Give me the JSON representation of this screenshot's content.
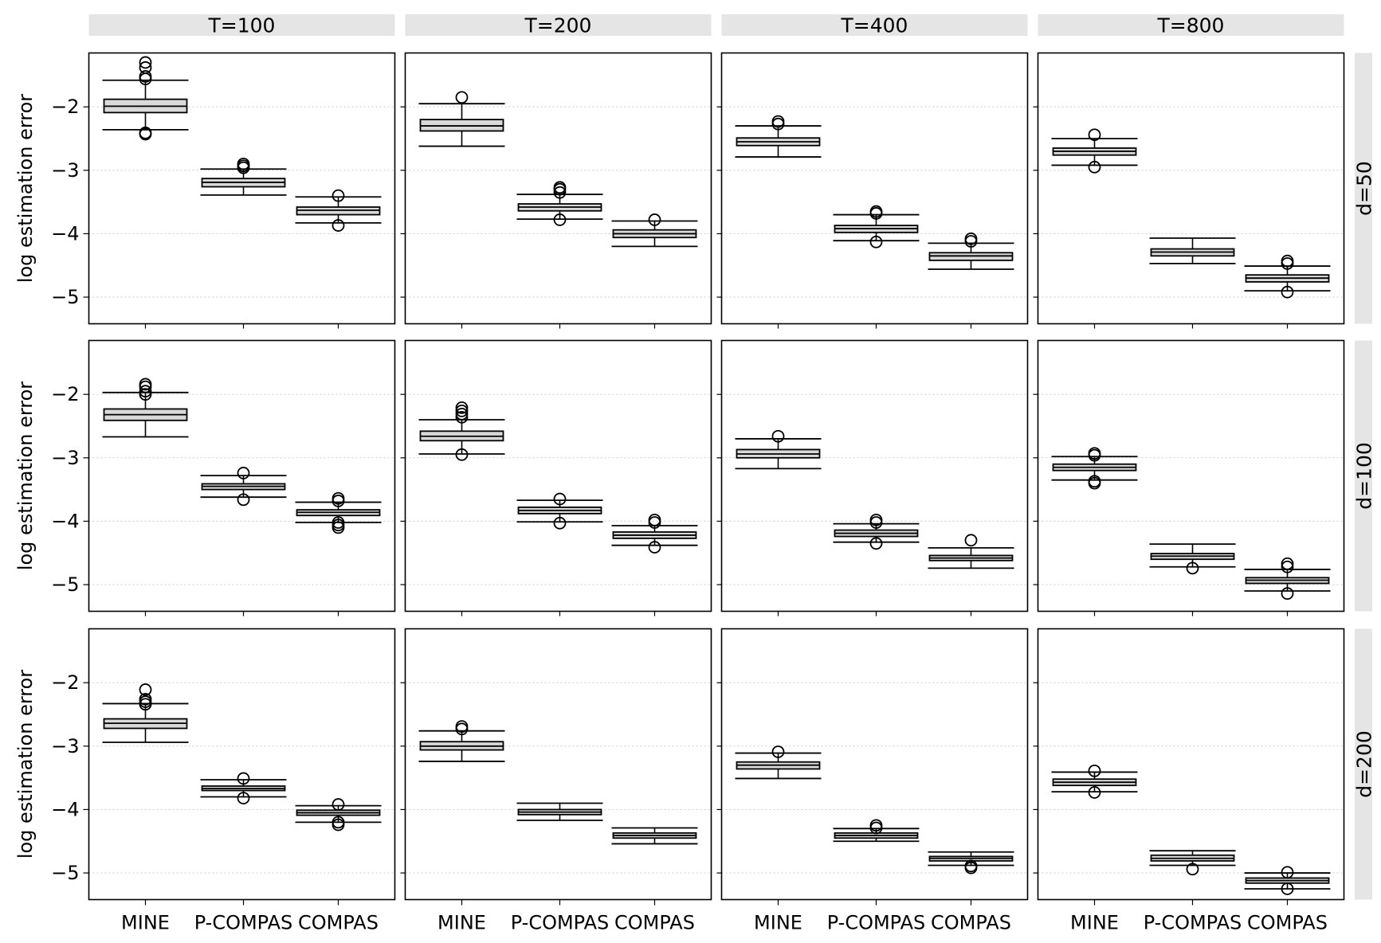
{
  "chart_data": {
    "type": "box",
    "facet_columns": [
      "T=100",
      "T=200",
      "T=400",
      "T=800"
    ],
    "facet_rows": [
      "d=50",
      "d=100",
      "d=200"
    ],
    "categories": [
      "MINE",
      "P-COMPAS",
      "COMPAS"
    ],
    "ylabel": "log  estimation error",
    "xlabel": "",
    "ylim": [
      -5.42,
      -1.15
    ],
    "yticks": [
      -2,
      -3,
      -4,
      -5
    ],
    "ytick_labels": [
      "−2",
      "−3",
      "−4",
      "−5"
    ],
    "grid": "horizontal dotted",
    "colors": {
      "box_fill": "#d9d9d9",
      "strip": "#e5e5e5",
      "grid": "#cccccc"
    },
    "panels": [
      {
        "row": "d=50",
        "col": "T=100",
        "boxes": [
          {
            "category": "MINE",
            "whislo": -2.36,
            "q1": -2.09,
            "median": -1.99,
            "q3": -1.88,
            "whishi": -1.58,
            "fliers": [
              -1.3,
              -1.38,
              -1.52,
              -1.56,
              -2.41,
              -2.43
            ]
          },
          {
            "category": "P-COMPAS",
            "whislo": -3.39,
            "q1": -3.26,
            "median": -3.19,
            "q3": -3.13,
            "whishi": -2.98,
            "fliers": [
              -2.9,
              -2.93,
              -2.96
            ]
          },
          {
            "category": "COMPAS",
            "whislo": -3.83,
            "q1": -3.7,
            "median": -3.63,
            "q3": -3.58,
            "whishi": -3.42,
            "fliers": [
              -3.4,
              -3.87
            ]
          }
        ]
      },
      {
        "row": "d=50",
        "col": "T=200",
        "boxes": [
          {
            "category": "MINE",
            "whislo": -2.62,
            "q1": -2.38,
            "median": -2.3,
            "q3": -2.2,
            "whishi": -1.95,
            "fliers": [
              -1.85
            ]
          },
          {
            "category": "P-COMPAS",
            "whislo": -3.77,
            "q1": -3.64,
            "median": -3.58,
            "q3": -3.53,
            "whishi": -3.38,
            "fliers": [
              -3.27,
              -3.3,
              -3.35,
              -3.78
            ]
          },
          {
            "category": "COMPAS",
            "whislo": -4.2,
            "q1": -4.06,
            "median": -4.0,
            "q3": -3.94,
            "whishi": -3.8,
            "fliers": [
              -3.78
            ]
          }
        ]
      },
      {
        "row": "d=50",
        "col": "T=400",
        "boxes": [
          {
            "category": "MINE",
            "whislo": -2.79,
            "q1": -2.61,
            "median": -2.55,
            "q3": -2.49,
            "whishi": -2.3,
            "fliers": [
              -2.23,
              -2.27
            ]
          },
          {
            "category": "P-COMPAS",
            "whislo": -4.11,
            "q1": -3.98,
            "median": -3.92,
            "q3": -3.87,
            "whishi": -3.7,
            "fliers": [
              -3.65,
              -3.68,
              -4.13
            ]
          },
          {
            "category": "COMPAS",
            "whislo": -4.56,
            "q1": -4.42,
            "median": -4.35,
            "q3": -4.3,
            "whishi": -4.15,
            "fliers": [
              -4.08,
              -4.12
            ]
          }
        ]
      },
      {
        "row": "d=50",
        "col": "T=800",
        "boxes": [
          {
            "category": "MINE",
            "whislo": -2.92,
            "q1": -2.76,
            "median": -2.7,
            "q3": -2.65,
            "whishi": -2.5,
            "fliers": [
              -2.44,
              -2.95
            ]
          },
          {
            "category": "P-COMPAS",
            "whislo": -4.47,
            "q1": -4.35,
            "median": -4.29,
            "q3": -4.24,
            "whishi": -4.07,
            "fliers": []
          },
          {
            "category": "COMPAS",
            "whislo": -4.9,
            "q1": -4.76,
            "median": -4.7,
            "q3": -4.65,
            "whishi": -4.51,
            "fliers": [
              -4.43,
              -4.47,
              -4.92
            ]
          }
        ]
      },
      {
        "row": "d=100",
        "col": "T=100",
        "boxes": [
          {
            "category": "MINE",
            "whislo": -2.67,
            "q1": -2.41,
            "median": -2.32,
            "q3": -2.23,
            "whishi": -1.97,
            "fliers": [
              -1.84,
              -1.88,
              -1.95,
              -2.0
            ]
          },
          {
            "category": "P-COMPAS",
            "whislo": -3.62,
            "q1": -3.5,
            "median": -3.45,
            "q3": -3.41,
            "whishi": -3.28,
            "fliers": [
              -3.24,
              -3.66
            ]
          },
          {
            "category": "COMPAS",
            "whislo": -4.02,
            "q1": -3.91,
            "median": -3.86,
            "q3": -3.82,
            "whishi": -3.7,
            "fliers": [
              -3.64,
              -3.68,
              -4.02,
              -4.06,
              -4.1
            ]
          }
        ]
      },
      {
        "row": "d=100",
        "col": "T=200",
        "boxes": [
          {
            "category": "MINE",
            "whislo": -2.94,
            "q1": -2.73,
            "median": -2.66,
            "q3": -2.58,
            "whishi": -2.4,
            "fliers": [
              -2.21,
              -2.26,
              -2.31,
              -2.36,
              -2.95
            ]
          },
          {
            "category": "P-COMPAS",
            "whislo": -4.01,
            "q1": -3.88,
            "median": -3.83,
            "q3": -3.78,
            "whishi": -3.67,
            "fliers": [
              -3.65,
              -4.03
            ]
          },
          {
            "category": "COMPAS",
            "whislo": -4.38,
            "q1": -4.27,
            "median": -4.22,
            "q3": -4.17,
            "whishi": -4.07,
            "fliers": [
              -3.98,
              -4.02,
              -4.41
            ]
          }
        ]
      },
      {
        "row": "d=100",
        "col": "T=400",
        "boxes": [
          {
            "category": "MINE",
            "whislo": -3.17,
            "q1": -3.0,
            "median": -2.94,
            "q3": -2.87,
            "whishi": -2.7,
            "fliers": [
              -2.66
            ]
          },
          {
            "category": "P-COMPAS",
            "whislo": -4.33,
            "q1": -4.24,
            "median": -4.19,
            "q3": -4.14,
            "whishi": -4.04,
            "fliers": [
              -3.98,
              -4.02,
              -4.35
            ]
          },
          {
            "category": "COMPAS",
            "whislo": -4.74,
            "q1": -4.62,
            "median": -4.58,
            "q3": -4.54,
            "whishi": -4.42,
            "fliers": [
              -4.3
            ]
          }
        ]
      },
      {
        "row": "d=100",
        "col": "T=800",
        "boxes": [
          {
            "category": "MINE",
            "whislo": -3.35,
            "q1": -3.2,
            "median": -3.15,
            "q3": -3.1,
            "whishi": -2.98,
            "fliers": [
              -2.93,
              -2.96,
              -3.37,
              -3.4
            ]
          },
          {
            "category": "P-COMPAS",
            "whislo": -4.72,
            "q1": -4.6,
            "median": -4.55,
            "q3": -4.51,
            "whishi": -4.36,
            "fliers": [
              -4.74
            ]
          },
          {
            "category": "COMPAS",
            "whislo": -5.1,
            "q1": -4.98,
            "median": -4.93,
            "q3": -4.89,
            "whishi": -4.76,
            "fliers": [
              -4.67,
              -4.72,
              -5.14
            ]
          }
        ]
      },
      {
        "row": "d=200",
        "col": "T=100",
        "boxes": [
          {
            "category": "MINE",
            "whislo": -2.94,
            "q1": -2.72,
            "median": -2.64,
            "q3": -2.57,
            "whishi": -2.33,
            "fliers": [
              -2.11,
              -2.26,
              -2.3,
              -2.34
            ]
          },
          {
            "category": "P-COMPAS",
            "whislo": -3.8,
            "q1": -3.7,
            "median": -3.67,
            "q3": -3.63,
            "whishi": -3.53,
            "fliers": [
              -3.51,
              -3.82
            ]
          },
          {
            "category": "COMPAS",
            "whislo": -4.2,
            "q1": -4.09,
            "median": -4.05,
            "q3": -4.01,
            "whishi": -3.94,
            "fliers": [
              -3.92,
              -4.2,
              -4.24
            ]
          }
        ]
      },
      {
        "row": "d=200",
        "col": "T=200",
        "boxes": [
          {
            "category": "MINE",
            "whislo": -3.24,
            "q1": -3.06,
            "median": -3.0,
            "q3": -2.93,
            "whishi": -2.76,
            "fliers": [
              -2.69,
              -2.73
            ]
          },
          {
            "category": "P-COMPAS",
            "whislo": -4.17,
            "q1": -4.08,
            "median": -4.04,
            "q3": -4.0,
            "whishi": -3.9,
            "fliers": []
          },
          {
            "category": "COMPAS",
            "whislo": -4.54,
            "q1": -4.45,
            "median": -4.41,
            "q3": -4.37,
            "whishi": -4.29,
            "fliers": []
          }
        ]
      },
      {
        "row": "d=200",
        "col": "T=400",
        "boxes": [
          {
            "category": "MINE",
            "whislo": -3.51,
            "q1": -3.36,
            "median": -3.3,
            "q3": -3.25,
            "whishi": -3.11,
            "fliers": [
              -3.09
            ]
          },
          {
            "category": "P-COMPAS",
            "whislo": -4.5,
            "q1": -4.45,
            "median": -4.41,
            "q3": -4.37,
            "whishi": -4.3,
            "fliers": [
              -4.25,
              -4.29
            ]
          },
          {
            "category": "COMPAS",
            "whislo": -4.88,
            "q1": -4.81,
            "median": -4.77,
            "q3": -4.74,
            "whishi": -4.67,
            "fliers": [
              -4.89,
              -4.92
            ]
          }
        ]
      },
      {
        "row": "d=200",
        "col": "T=800",
        "boxes": [
          {
            "category": "MINE",
            "whislo": -3.72,
            "q1": -3.62,
            "median": -3.57,
            "q3": -3.52,
            "whishi": -3.41,
            "fliers": [
              -3.39,
              -3.73
            ]
          },
          {
            "category": "P-COMPAS",
            "whislo": -4.88,
            "q1": -4.81,
            "median": -4.77,
            "q3": -4.72,
            "whishi": -4.65,
            "fliers": [
              -4.94
            ]
          },
          {
            "category": "COMPAS",
            "whislo": -5.25,
            "q1": -5.16,
            "median": -5.12,
            "q3": -5.08,
            "whishi": -5.0,
            "fliers": [
              -4.99,
              -5.25
            ]
          }
        ]
      }
    ]
  }
}
